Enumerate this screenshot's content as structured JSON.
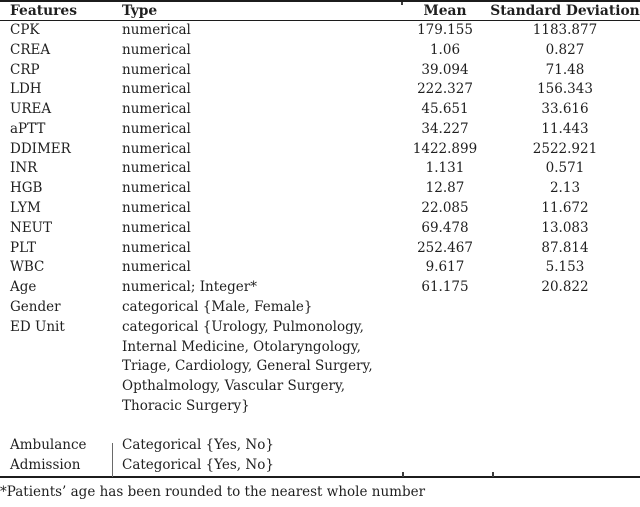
{
  "colors": {
    "text": "#1f1f1f",
    "border": "#1c1c1c",
    "background": "#ffffff"
  },
  "table": {
    "headers": {
      "feature": "Features",
      "type": "Type",
      "mean": "Mean",
      "sd": "Standard Deviation"
    },
    "rows": [
      {
        "feature": "CPK",
        "type": "numerical",
        "mean": "179.155",
        "sd": "1183.877"
      },
      {
        "feature": "CREA",
        "type": "numerical",
        "mean": "1.06",
        "sd": "0.827"
      },
      {
        "feature": "CRP",
        "type": "numerical",
        "mean": "39.094",
        "sd": "71.48"
      },
      {
        "feature": "LDH",
        "type": "numerical",
        "mean": "222.327",
        "sd": "156.343"
      },
      {
        "feature": "UREA",
        "type": "numerical",
        "mean": "45.651",
        "sd": "33.616"
      },
      {
        "feature": "aPTT",
        "type": "numerical",
        "mean": "34.227",
        "sd": "11.443"
      },
      {
        "feature": "DDIMER",
        "type": "numerical",
        "mean": "1422.899",
        "sd": "2522.921"
      },
      {
        "feature": "INR",
        "type": "numerical",
        "mean": "1.131",
        "sd": "0.571"
      },
      {
        "feature": "HGB",
        "type": "numerical",
        "mean": "12.87",
        "sd": "2.13"
      },
      {
        "feature": "LYM",
        "type": "numerical",
        "mean": "22.085",
        "sd": "11.672"
      },
      {
        "feature": "NEUT",
        "type": "numerical",
        "mean": "69.478",
        "sd": "13.083"
      },
      {
        "feature": "PLT",
        "type": "numerical",
        "mean": "252.467",
        "sd": "87.814"
      },
      {
        "feature": "WBC",
        "type": "numerical",
        "mean": "9.617",
        "sd": "5.153"
      },
      {
        "feature": "Age",
        "type": "numerical; Integer*",
        "mean": "61.175",
        "sd": "20.822"
      },
      {
        "feature": "Gender",
        "type": "categorical {Male, Female}",
        "mean": "",
        "sd": ""
      },
      {
        "feature": "ED Unit",
        "type_lines": [
          "categorical {Urology, Pulmonology,",
          "Internal Medicine, Otolaryngology,",
          "Triage, Cardiology, General Surgery,",
          "Opthalmology, Vascular Surgery,",
          "Thoracic Surgery}"
        ],
        "mean": "",
        "sd": ""
      },
      {
        "feature": "",
        "type": "",
        "mean": "",
        "sd": ""
      },
      {
        "feature": "Ambulance",
        "type": "Categorical {Yes, No}",
        "mean": "",
        "sd": ""
      },
      {
        "feature": "Admission",
        "type": "Categorical {Yes, No}",
        "mean": "",
        "sd": ""
      }
    ],
    "footnote": "*Patients’ age has been rounded to the nearest whole number"
  }
}
